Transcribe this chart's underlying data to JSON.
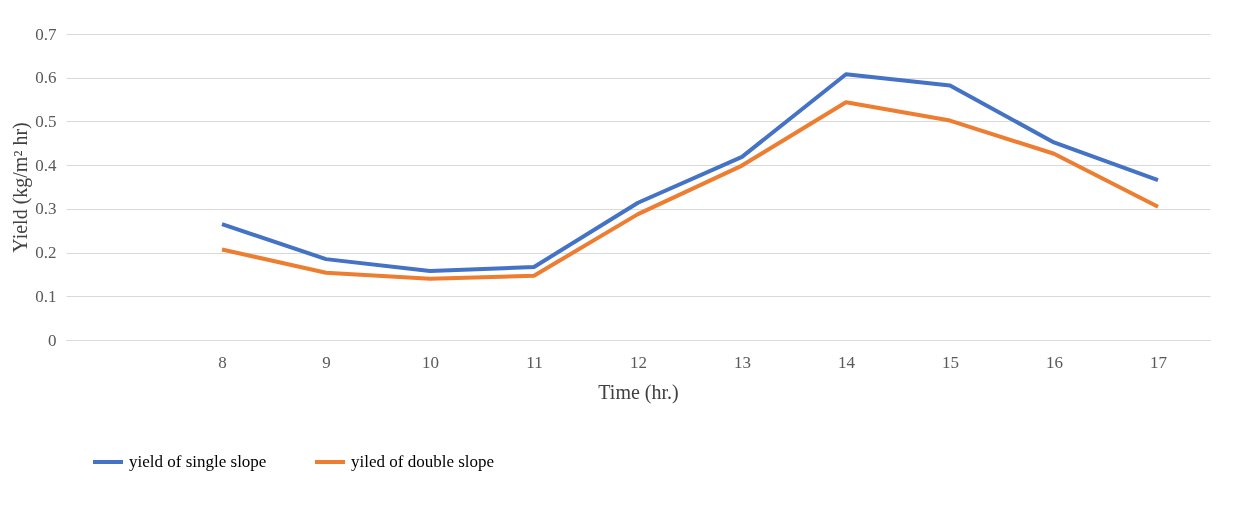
{
  "chart_data": {
    "type": "line",
    "xlabel": "Time (hr.)",
    "ylabel": "Yield (kg/m² hr)",
    "categories": [
      null,
      "8",
      "9",
      "10",
      "11",
      "12",
      "13",
      "14",
      "15",
      "16",
      "17"
    ],
    "series": [
      {
        "name": "yield of single slope",
        "color": "#4472c4",
        "values": [
          null,
          0.265,
          0.185,
          0.158,
          0.167,
          0.314,
          0.419,
          0.608,
          0.582,
          0.452,
          0.366
        ]
      },
      {
        "name": "yiled of double slope",
        "color": "#ed7d31",
        "values": [
          null,
          0.207,
          0.154,
          0.14,
          0.147,
          0.288,
          0.399,
          0.544,
          0.502,
          0.426,
          0.305
        ]
      }
    ],
    "ylim": [
      0,
      0.7
    ],
    "yticks": [
      0,
      0.1,
      0.2,
      0.3,
      0.4,
      0.5,
      0.6,
      0.7
    ],
    "grid": "y",
    "legend": "bottom",
    "marker": "none",
    "line_style": "solid"
  }
}
